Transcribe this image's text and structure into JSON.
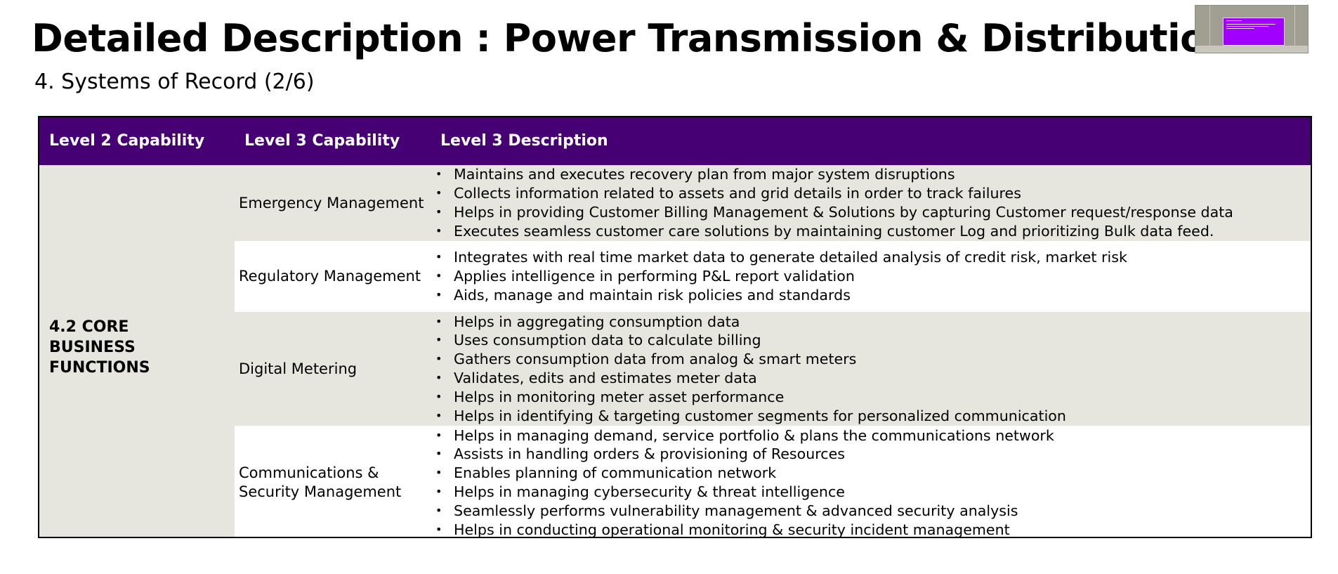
{
  "title": "Detailed Description : Power Transmission & Distribution",
  "subtitle": "4. Systems of Record (2/6)",
  "colors": {
    "header_bg": "#460073",
    "shade_bg": "#e6e6df",
    "thumbnail_accent": "#a100ff"
  },
  "table": {
    "headers": [
      "Level 2 Capability",
      "Level 3 Capability",
      "Level 3 Description"
    ],
    "level2_capability": "4.2 CORE BUSINESS FUNCTIONS",
    "rows": [
      {
        "capability": "Emergency Management",
        "descriptions": [
          "Maintains and executes recovery plan from  major system disruptions",
          "Collects information related to assets and grid details in order to track failures",
          "Helps in providing Customer Billing Management & Solutions by capturing Customer request/response data",
          "Executes seamless customer care solutions by maintaining customer Log and prioritizing Bulk data feed."
        ]
      },
      {
        "capability": "Regulatory Management",
        "descriptions": [
          "Integrates with real time market data to generate detailed analysis of credit risk, market risk",
          "Applies intelligence in performing P&L report validation",
          "Aids, manage and maintain risk policies and standards"
        ]
      },
      {
        "capability": "Digital Metering",
        "descriptions": [
          "Helps in aggregating consumption data",
          "Uses consumption data to calculate billing",
          "Gathers consumption data from analog & smart meters",
          "Validates, edits and estimates meter data",
          "Helps in monitoring meter asset performance",
          "Helps in identifying & targeting customer segments for personalized communication"
        ]
      },
      {
        "capability": "Communications & Security Management",
        "descriptions": [
          "Helps in managing demand, service portfolio & plans the communications network",
          "Assists in handling orders & provisioning of Resources",
          "Enables planning of communication network",
          "Helps in managing cybersecurity & threat intelligence",
          "Seamlessly performs vulnerability management & advanced security analysis",
          "Helps in conducting operational monitoring & security incident management"
        ]
      }
    ]
  }
}
